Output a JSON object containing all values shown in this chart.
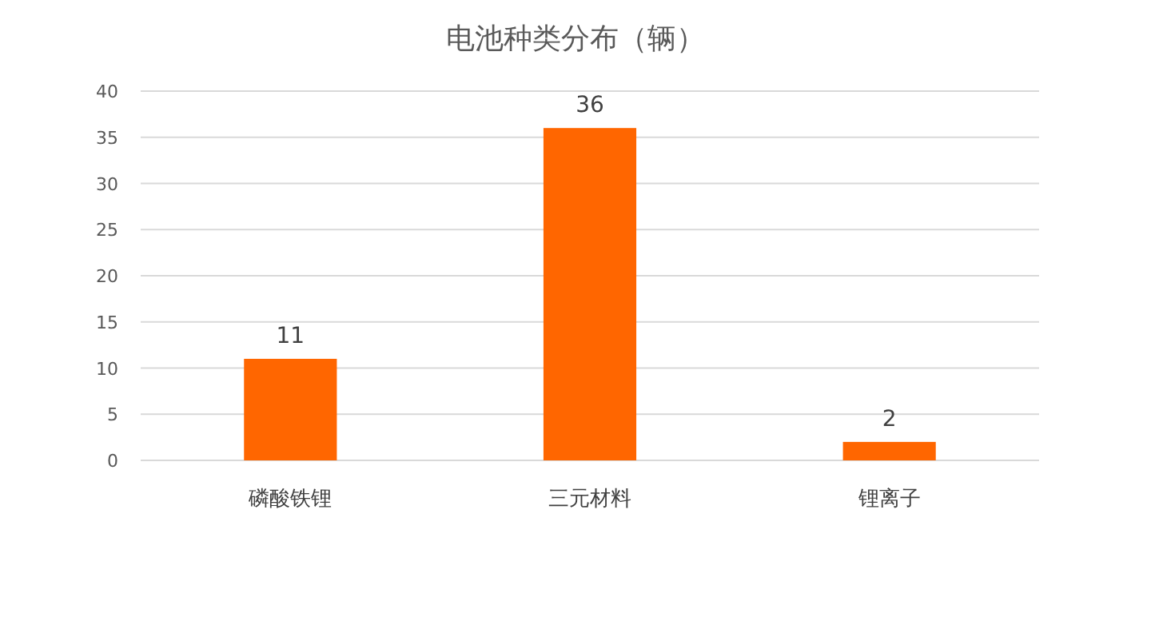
{
  "chart_data": {
    "type": "bar",
    "title": "电池种类分布（辆）",
    "categories": [
      "磷酸铁锂",
      "三元材料",
      "锂离子"
    ],
    "values": [
      11,
      36,
      2
    ],
    "color": "#ff6600",
    "ylim": [
      0,
      40
    ],
    "yticks": [
      0,
      5,
      10,
      15,
      20,
      25,
      30,
      35,
      40
    ],
    "grid": "y",
    "data_labels": true
  }
}
